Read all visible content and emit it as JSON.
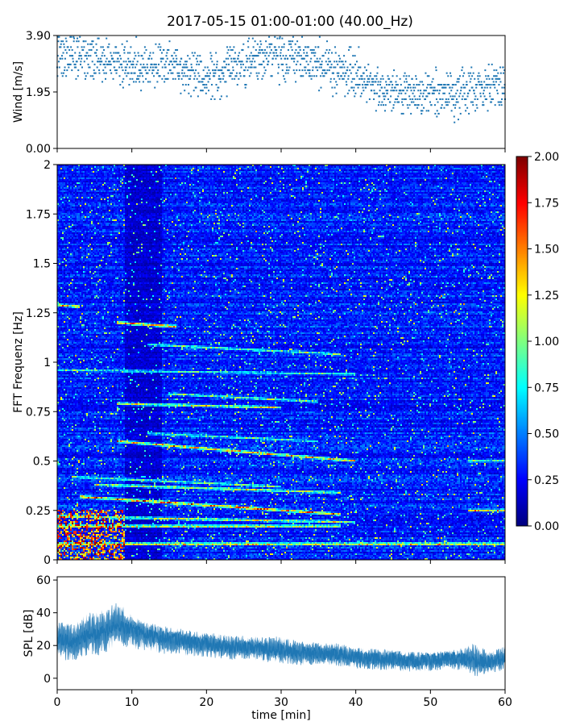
{
  "title": "2017-05-15 01:00-01:00 (40.00_Hz)",
  "colors": {
    "series": "#1f77b4",
    "axis": "#000000",
    "background": "#ffffff"
  },
  "chart_data": [
    {
      "type": "scatter",
      "panel": "wind",
      "ylabel": "Wind [m/s]",
      "xlim": [
        0,
        60
      ],
      "ylim": [
        0,
        3.9
      ],
      "yticks": [
        0.0,
        1.95,
        3.9
      ],
      "ytick_labels": [
        "0.00",
        "1.95",
        "3.90"
      ],
      "xticks": [
        0,
        10,
        20,
        30,
        40,
        50,
        60
      ],
      "x_tick_labels_shown": false,
      "trend": {
        "x": [
          0,
          5,
          10,
          15,
          20,
          25,
          30,
          35,
          40,
          45,
          50,
          55,
          60
        ],
        "y": [
          3.2,
          3.1,
          2.8,
          2.9,
          2.4,
          3.0,
          3.2,
          2.9,
          2.6,
          1.9,
          1.8,
          2.0,
          2.2
        ]
      },
      "spread": 0.55
    },
    {
      "type": "heatmap",
      "panel": "spectrogram",
      "ylabel": "FFT Frequenz [Hz]",
      "xlim": [
        0,
        60
      ],
      "ylim": [
        0,
        2
      ],
      "yticks": [
        0,
        0.25,
        0.5,
        0.75,
        1,
        1.25,
        1.5,
        1.75,
        2
      ],
      "ytick_labels": [
        "0",
        "0.25",
        "0.5",
        "0.75",
        "1",
        "1.25",
        "1.5",
        "1.75",
        "2"
      ],
      "xticks": [
        0,
        10,
        20,
        30,
        40,
        50,
        60
      ],
      "x_tick_labels_shown": false,
      "colorscale": "jet",
      "colorbar": {
        "range": [
          0,
          2
        ],
        "ticks": [
          0.0,
          0.25,
          0.5,
          0.75,
          1.0,
          1.25,
          1.5,
          1.75,
          2.0
        ],
        "tick_labels": [
          "0.00",
          "0.25",
          "0.50",
          "0.75",
          "1.00",
          "1.25",
          "1.50",
          "1.75",
          "2.00"
        ]
      },
      "background_level": 0.3,
      "harmonic_lines": [
        {
          "f0": 0.08,
          "f1": 0.08,
          "t0": 0,
          "t1": 60,
          "level": 1.6
        },
        {
          "f0": 0.17,
          "f1": 0.17,
          "t0": 0,
          "t1": 38,
          "level": 1.5
        },
        {
          "f0": 0.22,
          "f1": 0.19,
          "t0": 0,
          "t1": 40,
          "level": 1.3
        },
        {
          "f0": 0.32,
          "f1": 0.23,
          "t0": 3,
          "t1": 38,
          "level": 1.7
        },
        {
          "f0": 0.38,
          "f1": 0.34,
          "t0": 5,
          "t1": 38,
          "level": 1.3
        },
        {
          "f0": 0.42,
          "f1": 0.37,
          "t0": 2,
          "t1": 30,
          "level": 1.1
        },
        {
          "f0": 0.6,
          "f1": 0.5,
          "t0": 8,
          "t1": 40,
          "level": 1.6
        },
        {
          "f0": 0.64,
          "f1": 0.6,
          "t0": 12,
          "t1": 35,
          "level": 1.0
        },
        {
          "f0": 0.79,
          "f1": 0.77,
          "t0": 8,
          "t1": 30,
          "level": 1.4
        },
        {
          "f0": 0.84,
          "f1": 0.8,
          "t0": 15,
          "t1": 35,
          "level": 1.1
        },
        {
          "f0": 0.96,
          "f1": 0.94,
          "t0": 0,
          "t1": 40,
          "level": 1.0
        },
        {
          "f0": 1.09,
          "f1": 1.04,
          "t0": 12,
          "t1": 38,
          "level": 1.1
        },
        {
          "f0": 1.2,
          "f1": 1.18,
          "t0": 8,
          "t1": 16,
          "level": 1.7
        },
        {
          "f0": 1.29,
          "f1": 1.28,
          "t0": 0,
          "t1": 3,
          "level": 1.6
        },
        {
          "f0": 0.5,
          "f1": 0.5,
          "t0": 55,
          "t1": 60,
          "level": 1.1
        },
        {
          "f0": 0.25,
          "f1": 0.25,
          "t0": 55,
          "t1": 60,
          "level": 1.5
        }
      ],
      "hot_regions": [
        {
          "t0": 0,
          "t1": 9,
          "f0": 0,
          "f1": 0.25,
          "level": 1.7
        }
      ]
    },
    {
      "type": "area",
      "panel": "spl",
      "xlabel": "time [min]",
      "ylabel": "SPL [dB]",
      "xlim": [
        0,
        60
      ],
      "ylim": [
        -7,
        62
      ],
      "yticks": [
        0,
        20,
        40,
        60
      ],
      "ytick_labels": [
        "0",
        "20",
        "40",
        "60"
      ],
      "xticks": [
        0,
        10,
        20,
        30,
        40,
        50,
        60
      ],
      "xtick_labels": [
        "0",
        "10",
        "20",
        "30",
        "40",
        "50",
        "60"
      ],
      "x": [
        0,
        2,
        4,
        6,
        8,
        10,
        12,
        14,
        16,
        18,
        20,
        22,
        24,
        26,
        28,
        30,
        32,
        34,
        36,
        38,
        40,
        42,
        44,
        46,
        48,
        50,
        52,
        54,
        56,
        58,
        60
      ],
      "center": [
        25,
        22,
        26,
        28,
        32,
        30,
        27,
        25,
        24,
        22,
        21,
        20,
        19,
        19,
        18,
        17,
        16,
        15,
        15,
        14,
        13,
        12,
        12,
        11,
        11,
        11,
        12,
        12,
        10,
        10,
        13
      ],
      "upper": [
        35,
        33,
        40,
        42,
        47,
        40,
        34,
        32,
        31,
        29,
        28,
        27,
        26,
        26,
        25,
        26,
        23,
        22,
        22,
        21,
        19,
        18,
        18,
        17,
        16,
        16,
        17,
        18,
        22,
        16,
        20
      ],
      "lower": [
        12,
        10,
        14,
        14,
        20,
        18,
        16,
        15,
        14,
        13,
        13,
        12,
        11,
        11,
        10,
        9,
        8,
        8,
        8,
        7,
        6,
        5,
        5,
        4,
        4,
        4,
        5,
        5,
        1,
        3,
        5
      ]
    }
  ]
}
